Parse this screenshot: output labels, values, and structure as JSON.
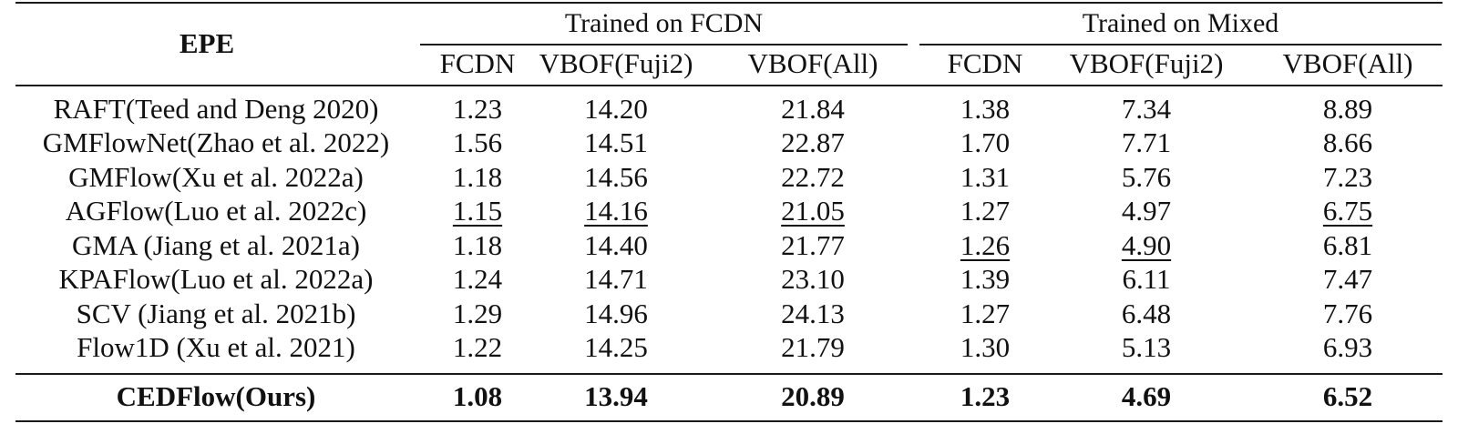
{
  "table": {
    "metric_label": "EPE",
    "groups": [
      {
        "label": "Trained on FCDN"
      },
      {
        "label": "Trained on Mixed"
      }
    ],
    "columns": [
      "FCDN",
      "VBOF(Fuji2)",
      "VBOF(All)",
      "FCDN",
      "VBOF(Fuji2)",
      "VBOF(All)"
    ],
    "rows": [
      {
        "method": "RAFT(Teed and Deng 2020)",
        "values": [
          "1.23",
          "14.20",
          "21.84",
          "1.38",
          "7.34",
          "8.89"
        ],
        "underlined": []
      },
      {
        "method": "GMFlowNet(Zhao et al. 2022)",
        "values": [
          "1.56",
          "14.51",
          "22.87",
          "1.70",
          "7.71",
          "8.66"
        ],
        "underlined": []
      },
      {
        "method": "GMFlow(Xu et al. 2022a)",
        "values": [
          "1.18",
          "14.56",
          "22.72",
          "1.31",
          "5.76",
          "7.23"
        ],
        "underlined": []
      },
      {
        "method": "AGFlow(Luo et al. 2022c)",
        "values": [
          "1.15",
          "14.16",
          "21.05",
          "1.27",
          "4.97",
          "6.75"
        ],
        "underlined": [
          0,
          1,
          2,
          5
        ]
      },
      {
        "method": "GMA (Jiang et al. 2021a)",
        "values": [
          "1.18",
          "14.40",
          "21.77",
          "1.26",
          "4.90",
          "6.81"
        ],
        "underlined": [
          3,
          4
        ]
      },
      {
        "method": "KPAFlow(Luo et al. 2022a)",
        "values": [
          "1.24",
          "14.71",
          "23.10",
          "1.39",
          "6.11",
          "7.47"
        ],
        "underlined": []
      },
      {
        "method": "SCV (Jiang et al. 2021b)",
        "values": [
          "1.29",
          "14.96",
          "24.13",
          "1.27",
          "6.48",
          "7.76"
        ],
        "underlined": []
      },
      {
        "method": "Flow1D (Xu et al. 2021)",
        "values": [
          "1.22",
          "14.25",
          "21.79",
          "1.30",
          "5.13",
          "6.93"
        ],
        "underlined": []
      }
    ],
    "final_row": {
      "method": "CEDFlow(Ours)",
      "values": [
        "1.08",
        "13.94",
        "20.89",
        "1.23",
        "4.69",
        "6.52"
      ]
    }
  }
}
